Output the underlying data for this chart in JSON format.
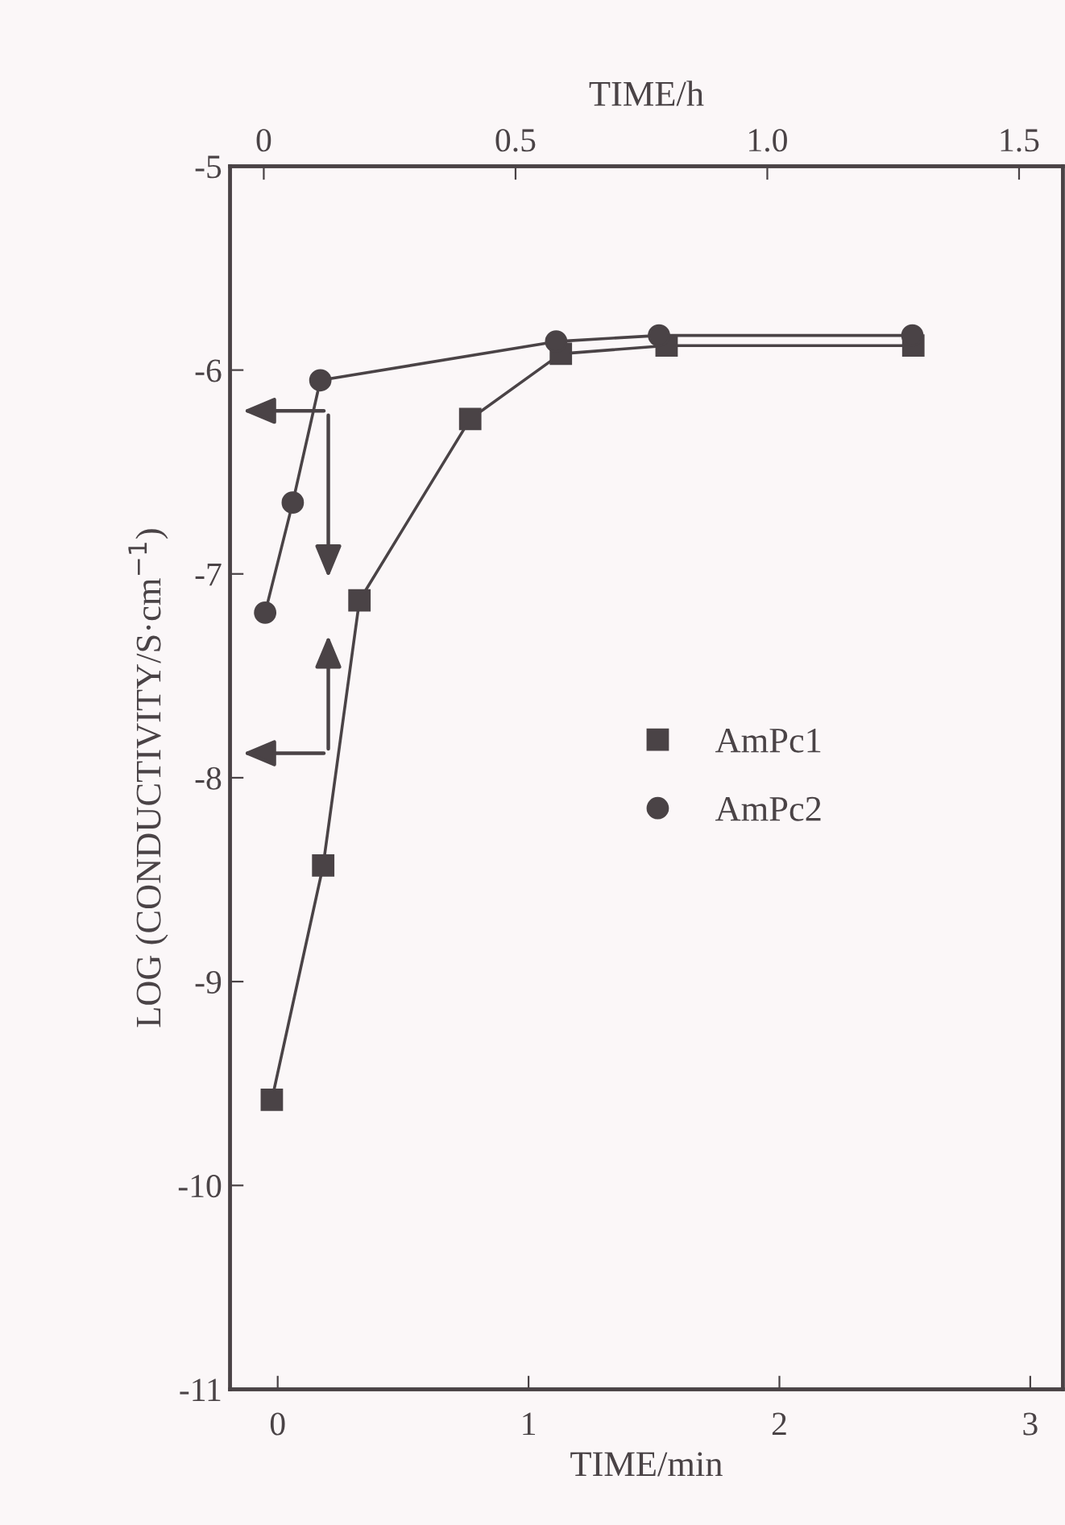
{
  "chart_data": {
    "type": "line",
    "xlabel": "TIME/min",
    "x2label": "TIME/h",
    "ylabel": "LOG (CONDUCTIVITY/S·cm$^{−1}$)",
    "xlim": [
      -0.19,
      3.13
    ],
    "xticks": [
      0,
      1,
      2,
      3
    ],
    "x2lim": [
      -0.067,
      1.587
    ],
    "x2ticks": [
      0,
      0.5,
      {
        "value": 1.0,
        "label": "1.0"
      },
      1.5
    ],
    "ylim": [
      -11,
      -5
    ],
    "yticks": [
      -5,
      -6,
      -7,
      -8,
      -9,
      -10,
      -11
    ],
    "grid": false,
    "legend": "center right",
    "series": [
      {
        "name": "AmPc1",
        "color": "#4a4346",
        "marker": "square",
        "axis": "x2",
        "x": [
          0.016,
          0.118,
          0.19,
          0.41,
          0.59,
          0.8,
          1.29
        ],
        "values": [
          -9.58,
          -8.43,
          -7.13,
          -6.24,
          -5.92,
          -5.88,
          -5.88
        ]
      },
      {
        "name": "AmPc2",
        "color": "#4a4346",
        "marker": "circle",
        "x": [
          -0.05,
          0.06,
          0.17,
          1.11,
          1.52,
          2.53
        ],
        "values": [
          -7.19,
          -6.65,
          -6.05,
          -5.86,
          -5.83,
          -5.83
        ]
      }
    ]
  }
}
